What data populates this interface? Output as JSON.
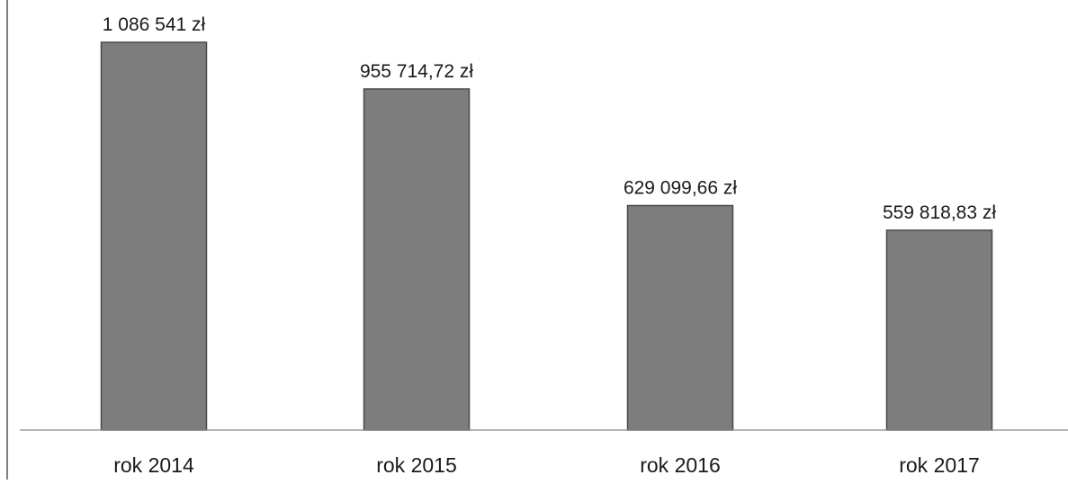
{
  "colors": {
    "bar": "#7d7d7d",
    "bar_edge": "#4a4a4a",
    "axis": "#8a8a8a",
    "frame": "#555555",
    "text": "#1a1a1a"
  },
  "chart_data": {
    "type": "bar",
    "categories": [
      "rok 2014",
      "rok 2015",
      "rok 2016",
      "rok 2017"
    ],
    "values": [
      1086541,
      955714.72,
      629099.66,
      559818.83
    ],
    "data_labels": [
      "1 086 541 zł",
      "955 714,72 zł",
      "629 099,66 zł",
      "559 818,83 zł"
    ],
    "ylim": [
      0,
      1200000
    ],
    "grid": false,
    "legend": "none"
  }
}
